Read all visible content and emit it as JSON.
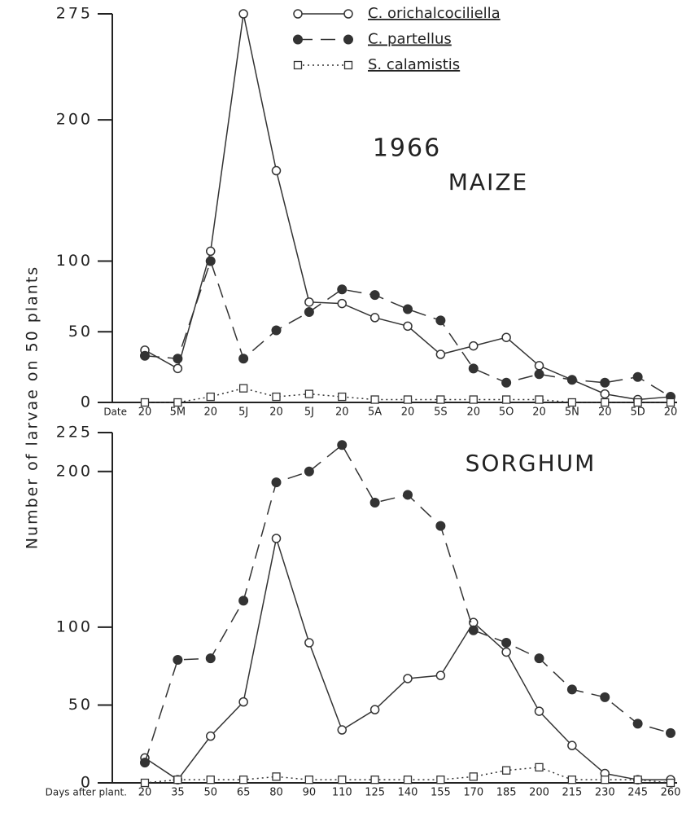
{
  "ylabel": "Number of larvae on 50 plants",
  "chart_data": [
    {
      "type": "line",
      "annotations": [
        "1966",
        "MAIZE"
      ],
      "xlabel": "Date",
      "categories": [
        "20",
        "5M",
        "20",
        "5J",
        "20",
        "5J",
        "20",
        "5A",
        "20",
        "5S",
        "20",
        "5O",
        "20",
        "5N",
        "20",
        "5D",
        "20"
      ],
      "ylim": [
        0,
        275
      ],
      "yticks": [
        0,
        50,
        100,
        200,
        275
      ],
      "series": [
        {
          "name": "C. orichalcociliella",
          "color": "#333333",
          "marker": "open-circle",
          "dash": "solid",
          "values": [
            37,
            24,
            107,
            275,
            164,
            71,
            70,
            60,
            54,
            34,
            40,
            46,
            26,
            16,
            6,
            2,
            4
          ]
        },
        {
          "name": "C. partellus",
          "color": "#333333",
          "marker": "filled-circle",
          "dash": "dashed",
          "values": [
            33,
            31,
            100,
            31,
            51,
            64,
            80,
            76,
            66,
            58,
            24,
            14,
            20,
            16,
            14,
            18,
            4
          ]
        },
        {
          "name": "S. calamistis",
          "color": "#333333",
          "marker": "open-square",
          "dash": "dotted",
          "values": [
            0,
            0,
            4,
            10,
            4,
            6,
            4,
            2,
            2,
            2,
            2,
            2,
            2,
            0,
            0,
            0,
            0
          ]
        }
      ]
    },
    {
      "type": "line",
      "annotations": [
        "SORGHUM"
      ],
      "xlabel": "Days after plant.",
      "categories": [
        "20",
        "35",
        "50",
        "65",
        "80",
        "90",
        "110",
        "125",
        "140",
        "155",
        "170",
        "185",
        "200",
        "215",
        "230",
        "245",
        "260"
      ],
      "ylim": [
        0,
        225
      ],
      "yticks": [
        0,
        50,
        100,
        200,
        225
      ],
      "series": [
        {
          "color": "#333333",
          "marker": "open-circle",
          "dash": "solid",
          "values": [
            16,
            2,
            30,
            52,
            157,
            90,
            34,
            47,
            67,
            69,
            103,
            84,
            46,
            24,
            6,
            2,
            2
          ]
        },
        {
          "color": "#333333",
          "marker": "filled-circle",
          "dash": "dashed",
          "values": [
            13,
            79,
            80,
            117,
            193,
            200,
            217,
            180,
            185,
            165,
            98,
            90,
            80,
            60,
            55,
            38,
            32
          ]
        },
        {
          "color": "#333333",
          "marker": "open-square",
          "dash": "dotted",
          "values": [
            0,
            2,
            2,
            2,
            4,
            2,
            2,
            2,
            2,
            2,
            4,
            8,
            10,
            2,
            2,
            2,
            0
          ]
        }
      ]
    }
  ]
}
